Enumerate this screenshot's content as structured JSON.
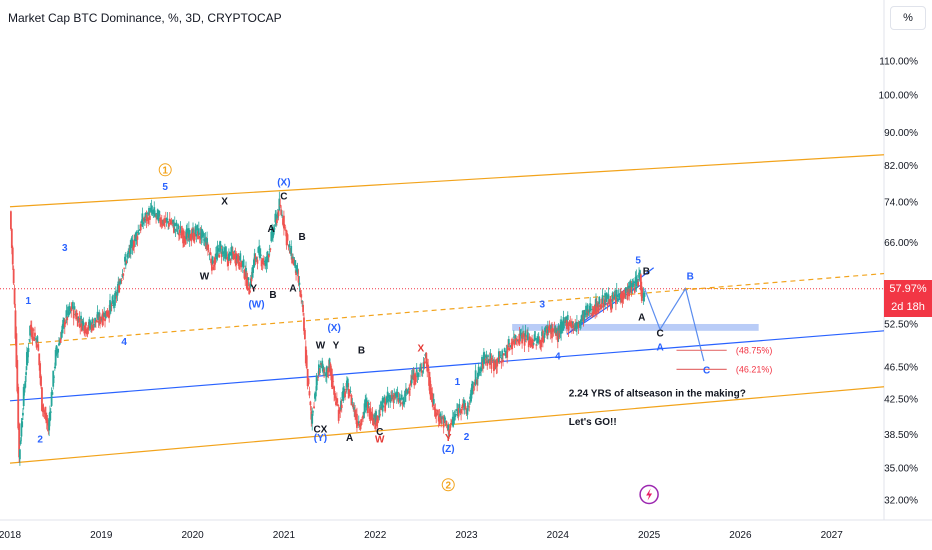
{
  "header": {
    "title": "Market Cap BTC Dominance, %, 3D, CRYPTOCAP",
    "scale_button": "%"
  },
  "price_tag": {
    "value": "57.97%",
    "countdown": "2d 18h"
  },
  "colors": {
    "bull": "#26a69a",
    "bear": "#ef5350",
    "orange": "#f2a31b",
    "blue": "#2962ff",
    "price_line": "#f23645",
    "zone": "#a8bff5",
    "projection": "#5b8def",
    "target": "#e57373",
    "label_blue": "#2962ff"
  },
  "chart_data": {
    "type": "line",
    "title": "Market Cap BTC Dominance, %, 3D, CRYPTOCAP",
    "y_scale": "log",
    "ylim": [
      30.5,
      125
    ],
    "xlim": [
      2018.0,
      2027.85
    ],
    "y_ticks": [
      "110.00%",
      "100.00%",
      "90.00%",
      "82.00%",
      "74.00%",
      "66.00%",
      "52.50%",
      "46.50%",
      "42.50%",
      "38.50%",
      "35.00%",
      "32.00%"
    ],
    "y_tick_values": [
      110,
      100,
      90,
      82,
      74,
      66,
      52.5,
      46.5,
      42.5,
      38.5,
      35,
      32
    ],
    "x_ticks": [
      "2018",
      "2019",
      "2020",
      "2021",
      "2022",
      "2023",
      "2024",
      "2025",
      "2026",
      "2027"
    ],
    "x_tick_values": [
      2018,
      2019,
      2020,
      2021,
      2022,
      2023,
      2024,
      2025,
      2026,
      2027
    ],
    "current_price": 57.97,
    "series": [
      {
        "kind": "price",
        "x": [
          2018.0,
          2018.05,
          2018.1,
          2018.15,
          2018.22,
          2018.3,
          2018.35,
          2018.42,
          2018.5,
          2018.6,
          2018.68,
          2018.76,
          2018.85,
          2018.95,
          2019.05,
          2019.15,
          2019.25,
          2019.35,
          2019.45,
          2019.55,
          2019.6,
          2019.68,
          2019.75,
          2019.85,
          2019.95,
          2020.05,
          2020.15,
          2020.22,
          2020.3,
          2020.38,
          2020.45,
          2020.55,
          2020.62,
          2020.68,
          2020.72,
          2020.8,
          2020.88,
          2020.95,
          2021.0,
          2021.05,
          2021.1,
          2021.15,
          2021.2,
          2021.25,
          2021.3,
          2021.35,
          2021.4,
          2021.45,
          2021.5,
          2021.55,
          2021.6,
          2021.65,
          2021.7,
          2021.75,
          2021.8,
          2021.85,
          2021.9,
          2021.95,
          2022.0,
          2022.1,
          2022.2,
          2022.3,
          2022.4,
          2022.5,
          2022.55,
          2022.6,
          2022.65,
          2022.75,
          2022.8,
          2022.85,
          2022.95,
          2023.0,
          2023.05,
          2023.1,
          2023.15,
          2023.2,
          2023.3,
          2023.4,
          2023.5,
          2023.6,
          2023.7,
          2023.8,
          2023.9,
          2024.0,
          2024.1,
          2024.2,
          2024.3,
          2024.4,
          2024.5,
          2024.6,
          2024.7,
          2024.8,
          2024.86,
          2024.9,
          2024.93,
          2024.95
        ],
        "y": [
          72,
          55,
          36,
          43,
          52,
          50,
          42,
          39,
          48,
          53,
          55,
          53,
          52,
          53,
          54,
          56,
          62,
          66,
          70,
          72,
          71,
          70,
          70,
          68,
          67,
          68,
          66,
          62,
          65,
          63,
          64,
          62,
          58,
          63,
          64,
          62,
          68,
          73,
          70,
          65,
          63,
          60,
          55,
          46,
          40,
          44,
          47,
          45,
          47,
          43,
          41,
          43,
          44,
          42,
          40,
          40,
          42,
          41,
          40,
          42,
          43,
          42,
          45,
          46,
          48,
          44,
          41,
          40,
          39,
          40,
          42,
          41,
          43,
          45,
          46,
          48,
          47,
          48,
          50,
          51,
          50,
          50,
          52,
          51,
          53,
          52,
          54,
          55,
          56,
          56,
          57,
          58,
          59,
          60,
          56,
          58
        ]
      }
    ],
    "annotations": {
      "wave_labels": [
        "1",
        "2",
        "3",
        "4",
        "5",
        "X",
        "Y",
        "W",
        "B",
        "A",
        "C",
        "(W)",
        "(X)",
        "(Y)",
        "X",
        "Y",
        "W",
        "B",
        "A",
        "C",
        "(Z)",
        "1",
        "2",
        "3",
        "4",
        "5",
        "B",
        "A",
        "C",
        "A",
        "B",
        "C",
        "1",
        "2"
      ],
      "targets": [
        "(48.75%)",
        "(46.21%)"
      ],
      "note_lines": [
        "2.24 YRS of altseason in the making?",
        "Let's GO!!"
      ]
    }
  },
  "labels": [
    {
      "text": "1",
      "c": "blue",
      "x": 2018.2,
      "y": 55.5
    },
    {
      "text": "2",
      "c": "blue",
      "x": 2018.33,
      "y": 37.6
    },
    {
      "text": "3",
      "c": "blue",
      "x": 2018.6,
      "y": 64.5
    },
    {
      "text": "4",
      "c": "blue",
      "x": 2019.25,
      "y": 49.5
    },
    {
      "text": "5",
      "c": "blue",
      "x": 2019.7,
      "y": 76.5
    },
    {
      "text": "X",
      "c": "black",
      "x": 2020.35,
      "y": 73.5
    },
    {
      "text": "W",
      "c": "black",
      "x": 2020.13,
      "y": 59.5
    },
    {
      "text": "Y",
      "c": "black",
      "x": 2020.67,
      "y": 57.5
    },
    {
      "text": "B",
      "c": "black",
      "x": 2020.88,
      "y": 56.5
    },
    {
      "text": "A",
      "c": "black",
      "x": 2020.86,
      "y": 68
    },
    {
      "text": "C",
      "c": "black",
      "x": 2021.0,
      "y": 74.5
    },
    {
      "text": "(X)",
      "c": "blue",
      "x": 2021.0,
      "y": 77.5
    },
    {
      "text": "(W)",
      "c": "blue",
      "x": 2020.7,
      "y": 55
    },
    {
      "text": "B",
      "c": "black",
      "x": 2021.2,
      "y": 66.5
    },
    {
      "text": "A",
      "c": "black",
      "x": 2021.1,
      "y": 57.5
    },
    {
      "text": "W",
      "c": "black",
      "x": 2021.4,
      "y": 49
    },
    {
      "text": "(X)",
      "c": "blue",
      "x": 2021.55,
      "y": 51.5
    },
    {
      "text": "Y",
      "c": "black",
      "x": 2021.57,
      "y": 49
    },
    {
      "text": "B",
      "c": "black",
      "x": 2021.85,
      "y": 48.3
    },
    {
      "text": "CX",
      "c": "black",
      "x": 2021.4,
      "y": 38.7
    },
    {
      "text": "(Y)",
      "c": "blue",
      "x": 2021.4,
      "y": 37.8
    },
    {
      "text": "A",
      "c": "black",
      "x": 2021.72,
      "y": 37.8
    },
    {
      "text": "C",
      "c": "black",
      "x": 2022.05,
      "y": 38.4
    },
    {
      "text": "W",
      "c": "red",
      "x": 2022.05,
      "y": 37.6
    },
    {
      "text": "X",
      "c": "red",
      "x": 2022.5,
      "y": 48.6
    },
    {
      "text": "1",
      "c": "blue",
      "x": 2022.9,
      "y": 44.2
    },
    {
      "text": "Y",
      "c": "red",
      "x": 2022.8,
      "y": 37.8
    },
    {
      "text": "(Z)",
      "c": "blue",
      "x": 2022.8,
      "y": 36.6
    },
    {
      "text": "2",
      "c": "blue",
      "x": 2023.0,
      "y": 37.9
    },
    {
      "text": "3",
      "c": "blue",
      "x": 2023.83,
      "y": 55
    },
    {
      "text": "4",
      "c": "blue",
      "x": 2024.0,
      "y": 47.5
    },
    {
      "text": "5",
      "c": "blue",
      "x": 2024.88,
      "y": 62.2
    },
    {
      "text": "B",
      "c": "black",
      "x": 2024.97,
      "y": 60.3
    },
    {
      "text": "A",
      "c": "black",
      "x": 2024.92,
      "y": 53
    },
    {
      "text": "C",
      "c": "black",
      "x": 2025.12,
      "y": 50.7
    },
    {
      "text": "A",
      "c": "blue",
      "x": 2025.12,
      "y": 48.7
    },
    {
      "text": "B",
      "c": "blue",
      "x": 2025.45,
      "y": 59.5
    },
    {
      "text": "C",
      "c": "blue",
      "x": 2025.63,
      "y": 45.7
    }
  ],
  "circle_labels": [
    {
      "text": "1",
      "x": 2019.7,
      "y": 81
    },
    {
      "text": "2",
      "x": 2022.8,
      "y": 33.4
    }
  ]
}
